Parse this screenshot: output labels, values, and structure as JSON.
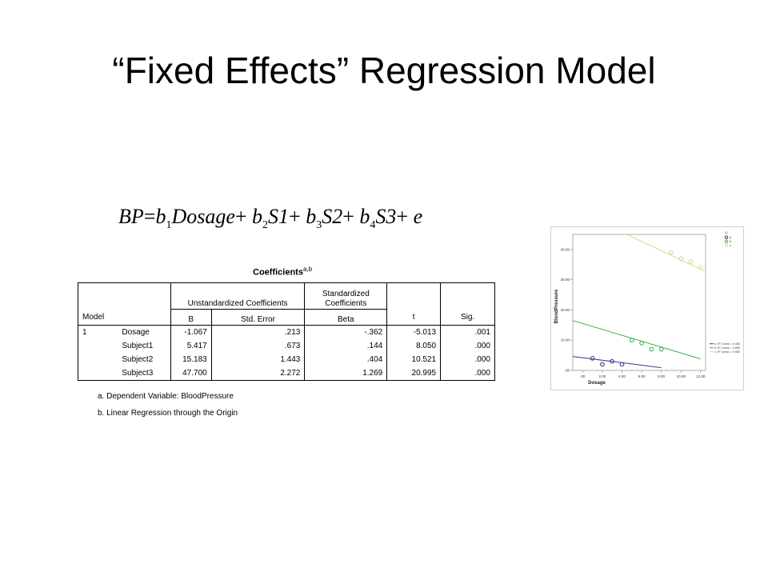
{
  "slide": {
    "title": "“Fixed Effects” Regression Model"
  },
  "equation": {
    "lhs": "BP",
    "eq": "=",
    "t1_coef": "b",
    "t1_sub": "1",
    "t1_var": "Dosage",
    "plus1": "+",
    "t2_coef": "b",
    "t2_sub": "2",
    "t2_var": "S1",
    "plus2": "+",
    "t3_coef": "b",
    "t3_sub": "3",
    "t3_var": "S2",
    "plus3": "+",
    "t4_coef": "b",
    "t4_sub": "4",
    "t4_var": "S3",
    "plus4": "+",
    "err": "e"
  },
  "coefficients": {
    "title": "Coefficients",
    "title_sup": "a,b",
    "header": {
      "model": "Model",
      "unstd": "Unstandardized Coefficients",
      "std": "Standardized Coefficients",
      "b": "B",
      "se": "Std. Error",
      "beta": "Beta",
      "t": "t",
      "sig": "Sig."
    },
    "model_number": "1",
    "rows": [
      {
        "name": "Dosage",
        "b": "-1.067",
        "se": ".213",
        "beta": "-.362",
        "t": "-5.013",
        "sig": ".001"
      },
      {
        "name": "Subject1",
        "b": "5.417",
        "se": ".673",
        "beta": ".144",
        "t": "8.050",
        "sig": ".000"
      },
      {
        "name": "Subject2",
        "b": "15.183",
        "se": "1.443",
        "beta": ".404",
        "t": "10.521",
        "sig": ".000"
      },
      {
        "name": "Subject3",
        "b": "47.700",
        "se": "2.272",
        "beta": "1.269",
        "t": "20.995",
        "sig": ".000"
      }
    ],
    "footnote_a": "a. Dependent Variable: BloodPressure",
    "footnote_b": "b. Linear Regression through the Origin"
  },
  "chart_data": {
    "type": "scatter",
    "xlabel": "Dosage",
    "ylabel": "BloodPressure",
    "xlim": [
      -1,
      12.5
    ],
    "ylim": [
      0,
      45
    ],
    "x_ticks": [
      ".00",
      "2.00",
      "4.00",
      "6.00",
      "8.00",
      "10.00",
      "12.00"
    ],
    "y_ticks": [
      ".00",
      "10.00",
      "20.00",
      "30.00",
      "40.00"
    ],
    "legend_top": [
      "a",
      "b",
      "c"
    ],
    "legend_bottom": [
      "a: R² Linear = 0.455",
      "b: R² Linear = 0.896",
      "c: R² Linear = 0.985"
    ],
    "series": [
      {
        "name": "a",
        "color": "#3a3a8c",
        "points": [
          [
            1,
            4
          ],
          [
            2,
            2
          ],
          [
            3,
            3
          ],
          [
            4,
            2
          ]
        ],
        "line": [
          [
            -1,
            4.6
          ],
          [
            8,
            0.9
          ]
        ]
      },
      {
        "name": "b",
        "color": "#39b54a",
        "points": [
          [
            5,
            10
          ],
          [
            6,
            9
          ],
          [
            7,
            7
          ],
          [
            8,
            7
          ]
        ],
        "line": [
          [
            -1,
            16.5
          ],
          [
            12,
            3.8
          ]
        ]
      },
      {
        "name": "c",
        "color": "#d9d99a",
        "points": [
          [
            9,
            39
          ],
          [
            10,
            37
          ],
          [
            11,
            36
          ],
          [
            12,
            34
          ]
        ],
        "line": [
          [
            4.5,
            45
          ],
          [
            12.4,
            32.8
          ]
        ]
      }
    ]
  }
}
